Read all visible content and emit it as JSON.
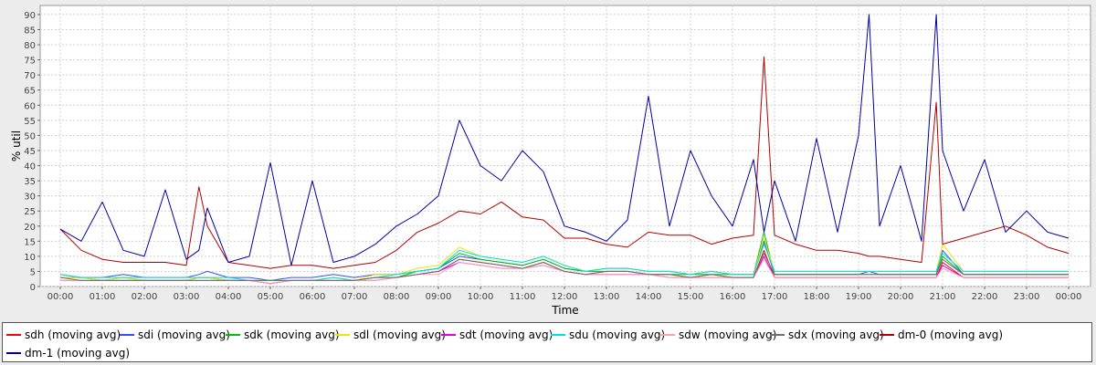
{
  "chart_data": {
    "type": "line",
    "title": "",
    "xlabel": "Time",
    "ylabel": "% util",
    "ylim": [
      0,
      93
    ],
    "yticks": [
      "0",
      "5",
      "10",
      "15",
      "20",
      "25",
      "30",
      "35",
      "40",
      "45",
      "50",
      "55",
      "60",
      "65",
      "70",
      "75",
      "80",
      "85",
      "90"
    ],
    "xticks": [
      "00:00",
      "01:00",
      "02:00",
      "03:00",
      "04:00",
      "05:00",
      "06:00",
      "07:00",
      "08:00",
      "09:00",
      "10:00",
      "11:00",
      "12:00",
      "13:00",
      "14:00",
      "15:00",
      "16:00",
      "17:00",
      "18:00",
      "19:00",
      "20:00",
      "21:00",
      "22:00",
      "23:00",
      "00:00"
    ],
    "grid": true,
    "legend_placement": "bottom",
    "x_hours": [
      0,
      0.5,
      1,
      1.5,
      2,
      2.5,
      3,
      3.3,
      3.5,
      4,
      4.5,
      5,
      5.5,
      6,
      6.5,
      7,
      7.5,
      8,
      8.5,
      9,
      9.5,
      10,
      10.5,
      11,
      11.5,
      12,
      12.5,
      13,
      13.5,
      14,
      14.5,
      15,
      15.5,
      16,
      16.5,
      16.75,
      17,
      17.5,
      18,
      18.5,
      19,
      19.25,
      19.5,
      20,
      20.5,
      20.85,
      21,
      21.5,
      22,
      22.5,
      23,
      23.5,
      24
    ],
    "series": [
      {
        "name": "sdh (moving avg)",
        "color": "#ff0000",
        "values": [
          3,
          3,
          2,
          2,
          2,
          2,
          2,
          3,
          3,
          2,
          2,
          1,
          2,
          2,
          2,
          2,
          3,
          3,
          4,
          5,
          9,
          8,
          7,
          6,
          8,
          5,
          4,
          5,
          5,
          4,
          4,
          3,
          4,
          3,
          3,
          12,
          3,
          3,
          3,
          3,
          3,
          3,
          3,
          3,
          3,
          3,
          8,
          3,
          3,
          3,
          3,
          3,
          3
        ]
      },
      {
        "name": "sdi (moving avg)",
        "color": "#3050ff",
        "values": [
          4,
          3,
          3,
          4,
          3,
          3,
          3,
          4,
          5,
          3,
          3,
          2,
          3,
          3,
          4,
          3,
          4,
          4,
          5,
          6,
          10,
          9,
          8,
          7,
          9,
          6,
          5,
          6,
          6,
          5,
          5,
          4,
          5,
          4,
          4,
          15,
          4,
          4,
          4,
          4,
          4,
          5,
          4,
          4,
          4,
          4,
          12,
          4,
          4,
          4,
          4,
          4,
          4
        ]
      },
      {
        "name": "sdk (moving avg)",
        "color": "#00c000",
        "values": [
          3,
          3,
          2,
          3,
          2,
          2,
          2,
          3,
          3,
          2,
          2,
          2,
          2,
          2,
          3,
          2,
          3,
          3,
          5,
          6,
          11,
          9,
          8,
          7,
          9,
          6,
          5,
          5,
          5,
          4,
          4,
          4,
          4,
          4,
          4,
          18,
          4,
          4,
          4,
          4,
          4,
          4,
          4,
          4,
          4,
          4,
          10,
          4,
          4,
          4,
          4,
          4,
          4
        ]
      },
      {
        "name": "sdl (moving avg)",
        "color": "#e8e800",
        "values": [
          3,
          3,
          2,
          3,
          2,
          2,
          2,
          3,
          3,
          2,
          2,
          2,
          2,
          2,
          3,
          2,
          4,
          4,
          6,
          7,
          13,
          10,
          9,
          8,
          10,
          7,
          5,
          6,
          6,
          5,
          5,
          4,
          5,
          4,
          4,
          16,
          5,
          5,
          5,
          5,
          5,
          5,
          5,
          5,
          5,
          5,
          14,
          5,
          5,
          5,
          5,
          5,
          5
        ]
      },
      {
        "name": "sdt (moving avg)",
        "color": "#e000e0",
        "values": [
          2,
          2,
          2,
          2,
          2,
          2,
          2,
          2,
          2,
          2,
          2,
          1,
          2,
          2,
          2,
          2,
          2,
          3,
          4,
          5,
          8,
          7,
          6,
          6,
          7,
          5,
          4,
          4,
          4,
          4,
          3,
          3,
          3,
          3,
          3,
          10,
          3,
          3,
          3,
          3,
          3,
          3,
          3,
          3,
          3,
          3,
          7,
          3,
          3,
          3,
          3,
          3,
          3
        ]
      },
      {
        "name": "sdu (moving avg)",
        "color": "#00e0e0",
        "values": [
          4,
          3,
          3,
          3,
          3,
          3,
          3,
          3,
          3,
          3,
          2,
          2,
          2,
          2,
          3,
          2,
          3,
          4,
          5,
          6,
          12,
          10,
          9,
          8,
          10,
          7,
          5,
          6,
          6,
          5,
          5,
          4,
          5,
          4,
          4,
          14,
          5,
          5,
          5,
          5,
          5,
          5,
          5,
          5,
          5,
          5,
          11,
          5,
          5,
          5,
          5,
          5,
          5
        ]
      },
      {
        "name": "sdw (moving avg)",
        "color": "#ff9fb0",
        "values": [
          2,
          2,
          2,
          2,
          2,
          2,
          2,
          2,
          2,
          2,
          2,
          1,
          2,
          2,
          2,
          2,
          2,
          3,
          4,
          4,
          8,
          7,
          6,
          6,
          7,
          5,
          4,
          4,
          4,
          4,
          3,
          3,
          3,
          3,
          3,
          9,
          3,
          3,
          3,
          3,
          3,
          3,
          3,
          3,
          3,
          3,
          6,
          3,
          3,
          3,
          3,
          3,
          3
        ]
      },
      {
        "name": "sdx (moving avg)",
        "color": "#707070",
        "values": [
          3,
          2,
          2,
          2,
          2,
          2,
          2,
          2,
          2,
          2,
          2,
          2,
          2,
          2,
          2,
          2,
          3,
          3,
          4,
          5,
          9,
          8,
          7,
          6,
          8,
          5,
          4,
          5,
          5,
          4,
          4,
          3,
          4,
          3,
          3,
          11,
          4,
          4,
          4,
          4,
          4,
          4,
          4,
          4,
          4,
          4,
          9,
          4,
          4,
          4,
          4,
          4,
          4
        ]
      },
      {
        "name": "dm-0 (moving avg)",
        "color": "#b00000",
        "values": [
          19,
          12,
          9,
          8,
          8,
          8,
          7,
          33,
          20,
          8,
          7,
          6,
          7,
          7,
          6,
          7,
          8,
          12,
          18,
          21,
          25,
          24,
          28,
          23,
          22,
          16,
          16,
          14,
          13,
          18,
          17,
          17,
          14,
          16,
          17,
          76,
          17,
          14,
          12,
          12,
          11,
          10,
          10,
          9,
          8,
          61,
          14,
          16,
          18,
          20,
          17,
          13,
          11
        ]
      },
      {
        "name": "dm-1 (moving avg)",
        "color": "#0000a0",
        "values": [
          19,
          15,
          28,
          12,
          10,
          32,
          9,
          12,
          26,
          8,
          10,
          41,
          7,
          35,
          8,
          10,
          14,
          20,
          24,
          30,
          55,
          40,
          35,
          45,
          38,
          20,
          18,
          15,
          22,
          63,
          20,
          45,
          30,
          20,
          42,
          18,
          35,
          15,
          49,
          18,
          50,
          90,
          20,
          40,
          15,
          90,
          45,
          25,
          42,
          18,
          25,
          18,
          16
        ]
      }
    ]
  }
}
